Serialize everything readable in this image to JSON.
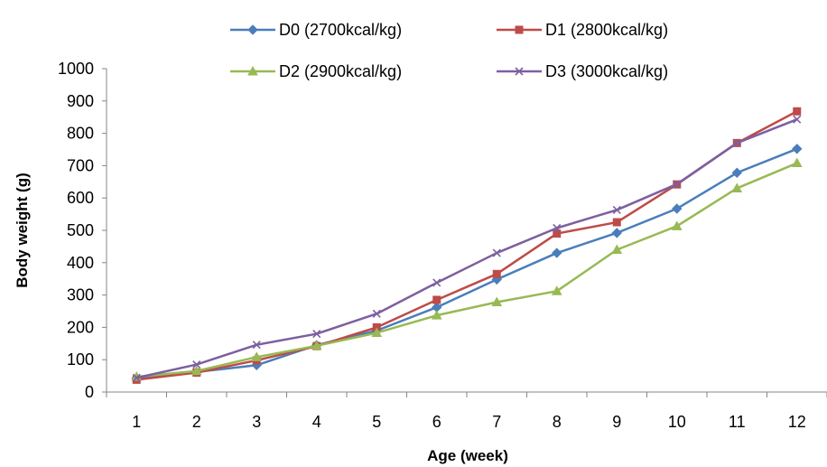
{
  "chart_data": {
    "type": "line",
    "title": "",
    "xlabel": "Age  (week)",
    "ylabel": "Body weight (g)",
    "x": [
      1,
      2,
      3,
      4,
      5,
      6,
      7,
      8,
      9,
      10,
      11,
      12
    ],
    "x_tick_labels": [
      "1",
      "2",
      "3",
      "4",
      "5",
      "6",
      "7",
      "8",
      "9",
      "10",
      "11",
      "12"
    ],
    "ylim": [
      0,
      1000
    ],
    "y_ticks": [
      0,
      100,
      200,
      300,
      400,
      500,
      600,
      700,
      800,
      900,
      1000
    ],
    "grid": false,
    "legend_position": "top",
    "series": [
      {
        "name": "D0 (2700kcal/kg)",
        "color": "#4a7ebb",
        "marker": "diamond",
        "values": [
          42,
          62,
          83,
          145,
          190,
          262,
          348,
          430,
          492,
          567,
          678,
          752
        ]
      },
      {
        "name": "D1 (2800kcal/kg)",
        "color": "#be4b48",
        "marker": "square",
        "values": [
          38,
          60,
          98,
          142,
          200,
          285,
          365,
          490,
          525,
          642,
          770,
          868
        ]
      },
      {
        "name": "D2 (2900kcal/kg)",
        "color": "#98b954",
        "marker": "triangle",
        "values": [
          47,
          65,
          108,
          143,
          183,
          237,
          278,
          312,
          440,
          513,
          630,
          708
        ]
      },
      {
        "name": "D3 (3000kcal/kg)",
        "color": "#7d5fa0",
        "marker": "x",
        "values": [
          44,
          85,
          146,
          180,
          242,
          338,
          430,
          507,
          563,
          643,
          770,
          843
        ]
      }
    ]
  }
}
